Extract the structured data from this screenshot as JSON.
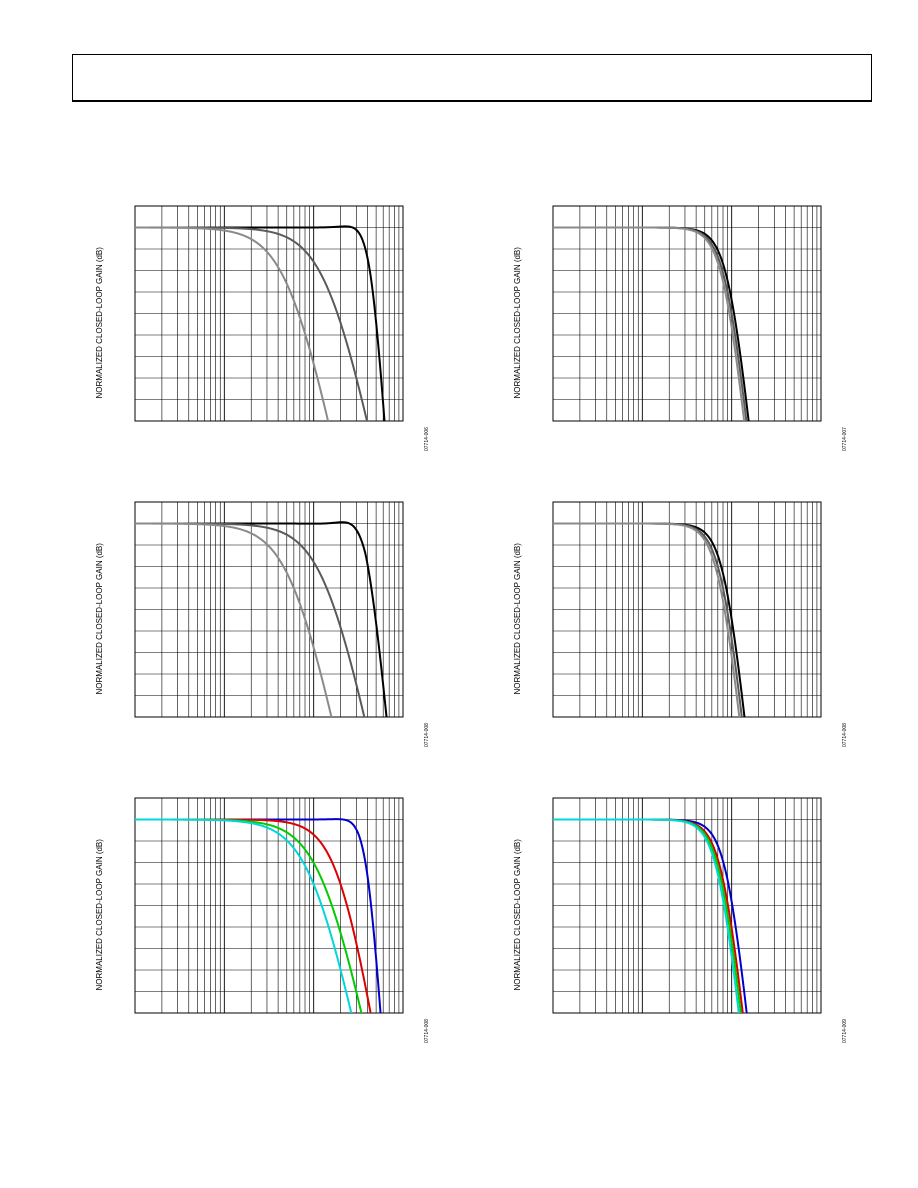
{
  "header": {
    "title": ""
  },
  "chart_data": [
    {
      "type": "line",
      "ylabel": "NORMALIZED CLOSED-LOOP GAIN (dB)",
      "figure_id": "07714-006",
      "grid": true,
      "xscale": "log",
      "xlim": [
        1,
        1000
      ],
      "ylim": [
        -9,
        1
      ],
      "series": [
        {
          "color": "#000000",
          "peak": 0.3,
          "fc": 440,
          "order": 6
        },
        {
          "color": "#5a5a5a",
          "peak": 0,
          "fc": 150,
          "order": 2
        },
        {
          "color": "#8a8a8a",
          "peak": 0,
          "fc": 55,
          "order": 2
        }
      ]
    },
    {
      "type": "line",
      "ylabel": "NORMALIZED CLOSED-LOOP GAIN (dB)",
      "figure_id": "07714-007",
      "grid": true,
      "xscale": "log",
      "xlim": [
        1,
        1000
      ],
      "ylim": [
        -9,
        1
      ],
      "series": [
        {
          "color": "#000000",
          "peak": 0.05,
          "fc": 95,
          "order": 4
        },
        {
          "color": "#5a5a5a",
          "peak": 0,
          "fc": 90,
          "order": 4
        },
        {
          "color": "#8a8a8a",
          "peak": 0,
          "fc": 85,
          "order": 4
        }
      ]
    },
    {
      "type": "line",
      "ylabel": "NORMALIZED CLOSED-LOOP GAIN (dB)",
      "figure_id": "07714-008",
      "grid": true,
      "xscale": "log",
      "xlim": [
        1,
        1000
      ],
      "ylim": [
        -9,
        1
      ],
      "series": [
        {
          "color": "#000000",
          "peak": 0.8,
          "fc": 380,
          "order": 4
        },
        {
          "color": "#5a5a5a",
          "peak": 0,
          "fc": 140,
          "order": 2
        },
        {
          "color": "#8a8a8a",
          "peak": 0,
          "fc": 60,
          "order": 2
        }
      ]
    },
    {
      "type": "line",
      "ylabel": "NORMALIZED CLOSED-LOOP GAIN (dB)",
      "figure_id": "07714-008",
      "grid": true,
      "xscale": "log",
      "xlim": [
        1,
        1000
      ],
      "ylim": [
        -9,
        1
      ],
      "series": [
        {
          "color": "#000000",
          "peak": 0.1,
          "fc": 85,
          "order": 4
        },
        {
          "color": "#5a5a5a",
          "peak": 0,
          "fc": 80,
          "order": 4
        },
        {
          "color": "#8a8a8a",
          "peak": 0,
          "fc": 75,
          "order": 4
        }
      ]
    },
    {
      "type": "line",
      "ylabel": "NORMALIZED CLOSED-LOOP GAIN (dB)",
      "figure_id": "07714-008",
      "grid": true,
      "xscale": "log",
      "xlim": [
        1,
        1000
      ],
      "ylim": [
        -9,
        1
      ],
      "series": [
        {
          "color": "#0000cc",
          "peak": 0.2,
          "fc": 400,
          "order": 6
        },
        {
          "color": "#dd0000",
          "peak": 0,
          "fc": 200,
          "order": 2.5
        },
        {
          "color": "#00cc00",
          "peak": 0,
          "fc": 130,
          "order": 2
        },
        {
          "color": "#00d8d8",
          "peak": 0,
          "fc": 100,
          "order": 2
        }
      ]
    },
    {
      "type": "line",
      "ylabel": "NORMALIZED CLOSED-LOOP GAIN (dB)",
      "figure_id": "07714-009",
      "grid": true,
      "xscale": "log",
      "xlim": [
        1,
        1000
      ],
      "ylim": [
        -9,
        1
      ],
      "series": [
        {
          "color": "#0000cc",
          "peak": 0.1,
          "fc": 90,
          "order": 4
        },
        {
          "color": "#dd0000",
          "peak": 0,
          "fc": 82,
          "order": 4
        },
        {
          "color": "#00cc00",
          "peak": 0,
          "fc": 78,
          "order": 4
        },
        {
          "color": "#00d8d8",
          "peak": 0,
          "fc": 74,
          "order": 4
        }
      ]
    }
  ]
}
